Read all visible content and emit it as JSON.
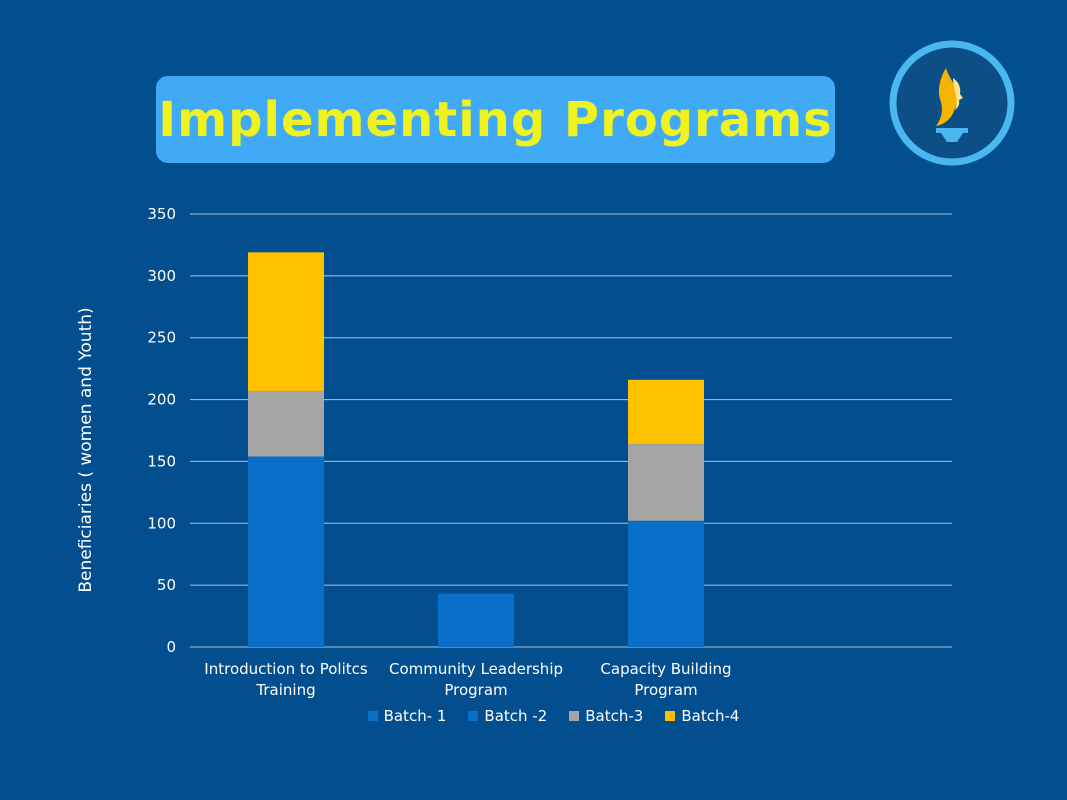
{
  "title": "Implementing Programs",
  "logo": {
    "icon": "woman-profile-torch-logo"
  },
  "colors": {
    "background": "#034e8f",
    "title_bg": "#41aaf7",
    "title_text": "#f0f21e",
    "batch1": "#0a6fc8",
    "batch2": "#0a6fc8",
    "batch3": "#a5a5a5",
    "batch4": "#ffc000",
    "grid": "#a9c4de",
    "text": "#ffffff"
  },
  "chart_data": {
    "type": "bar",
    "stacked": true,
    "categories": [
      [
        "Introduction to Politcs",
        "Training"
      ],
      [
        "Community Leadership",
        "Program"
      ],
      [
        "Capacity Building",
        "Program"
      ]
    ],
    "series": [
      {
        "name": "Batch- 1",
        "color": "#0a6fc8",
        "values": [
          154,
          0,
          102
        ]
      },
      {
        "name": "Batch -2",
        "color": "#0a6fc8",
        "values": [
          0,
          43,
          0
        ]
      },
      {
        "name": "Batch-3",
        "color": "#a5a5a5",
        "values": [
          53,
          0,
          62
        ]
      },
      {
        "name": "Batch-4",
        "color": "#ffc000",
        "values": [
          112,
          0,
          52
        ]
      }
    ],
    "ylabel": "Beneficiaries ( women and Youth)",
    "xlabel": "",
    "ylim": [
      0,
      350
    ],
    "yticks": [
      0,
      50,
      100,
      150,
      200,
      250,
      300,
      350
    ],
    "grid": true,
    "legend": "bottom"
  }
}
